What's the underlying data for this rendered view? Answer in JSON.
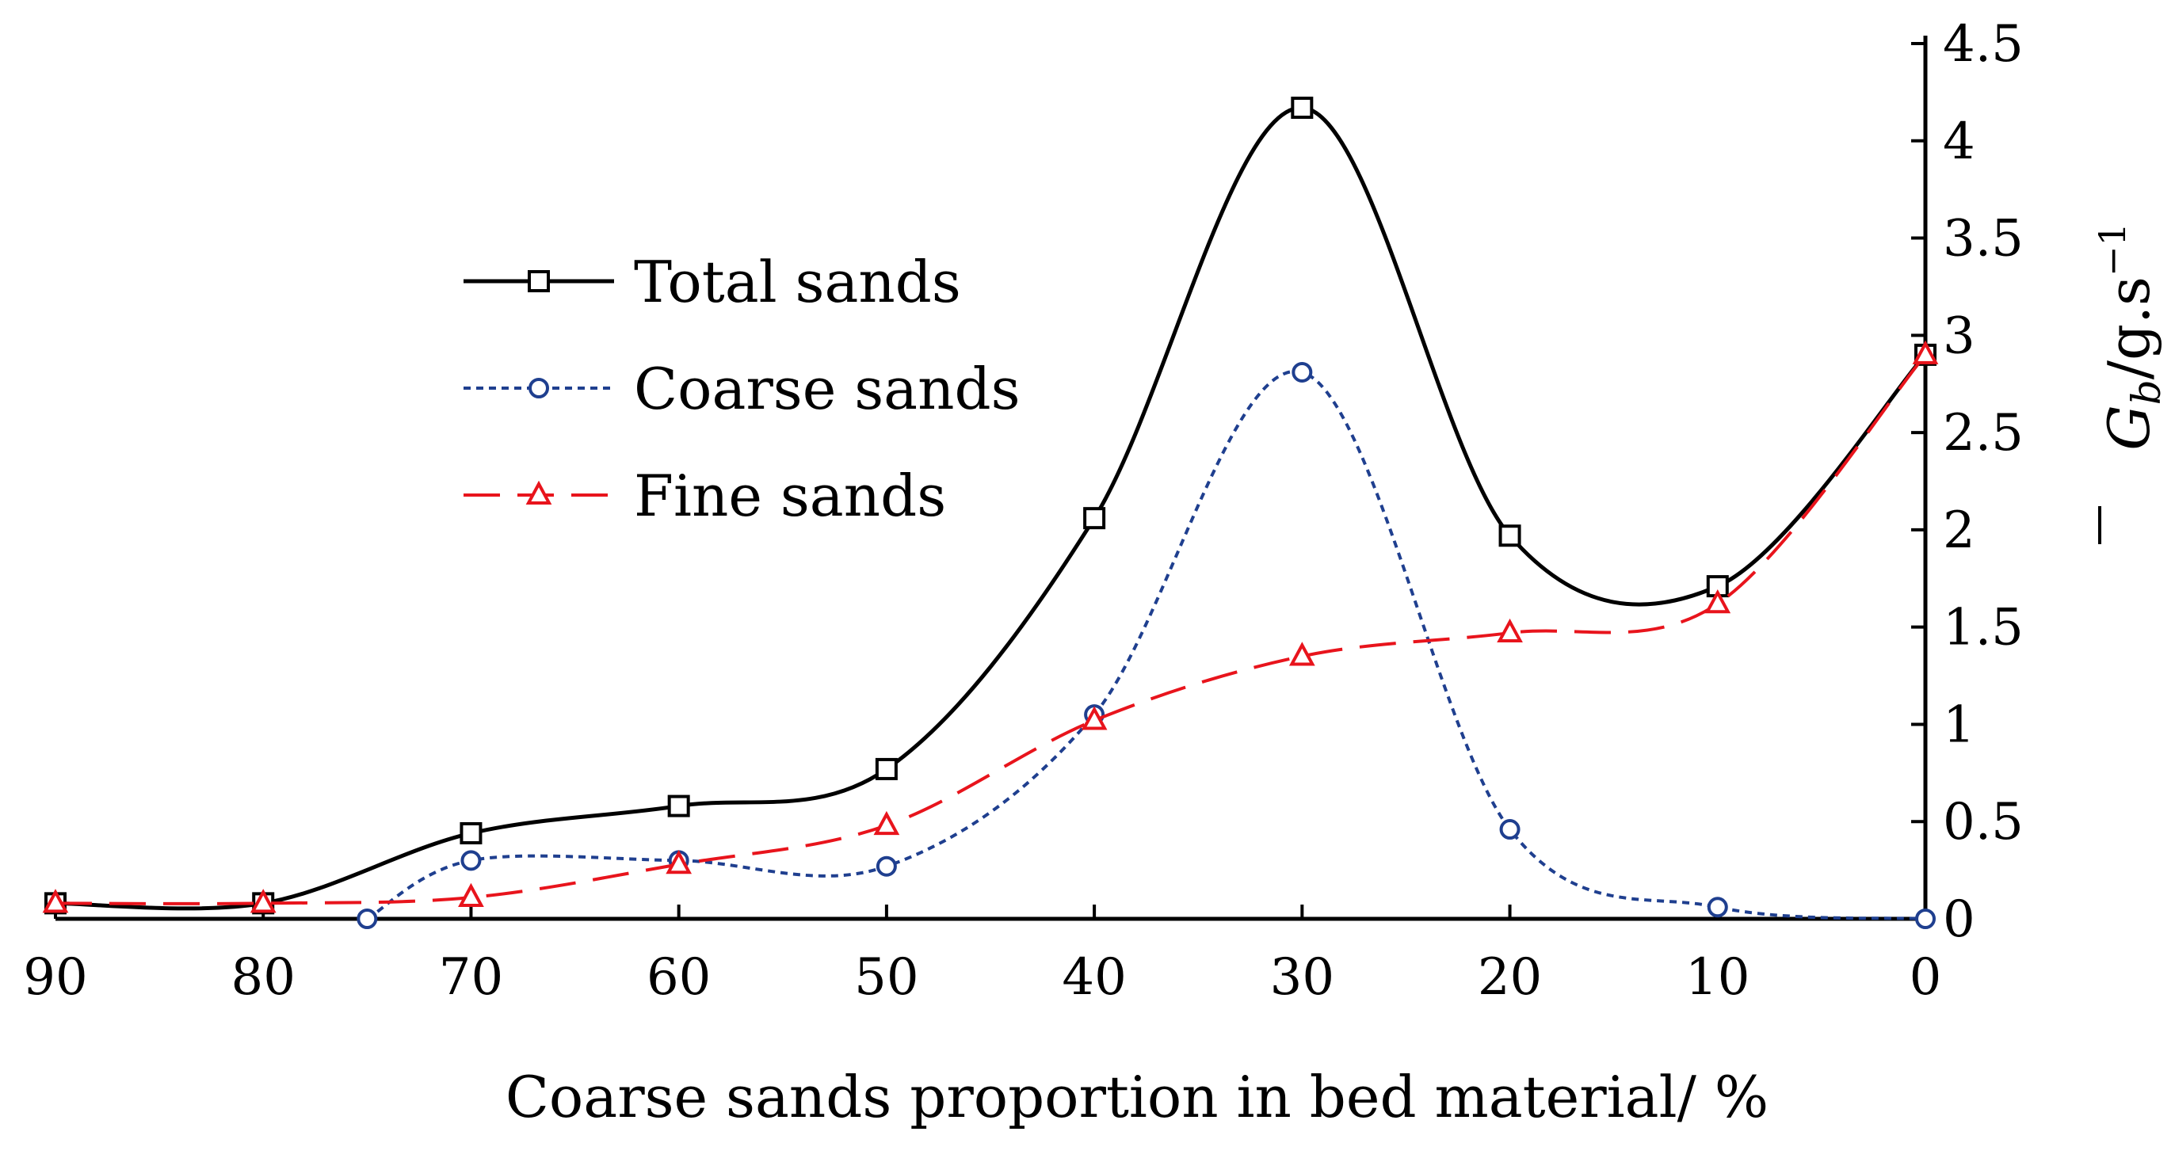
{
  "chart_data": {
    "type": "line",
    "xlabel": "Coarse sands proportion in bed material/ %",
    "ylabel": {
      "main": "G",
      "subscript": "b",
      "unit": "/g.s",
      "superscript": "−1"
    },
    "x_reversed": true,
    "xlim": [
      90,
      0
    ],
    "ylim": [
      0,
      4.5
    ],
    "xticks": [
      "90",
      "80",
      "70",
      "60",
      "50",
      "40",
      "30",
      "20",
      "10",
      "0"
    ],
    "yticks": [
      "0",
      "0.5",
      "1",
      "1.5",
      "2",
      "2.5",
      "3",
      "3.5",
      "4",
      "4.5"
    ],
    "legend_position": "upper-left",
    "grid": false,
    "series": [
      {
        "name": "Total sands",
        "color": "#000000",
        "line_style": "solid",
        "marker": "square",
        "x": [
          90,
          80,
          70,
          60,
          50,
          40,
          30,
          20,
          10,
          0
        ],
        "y": [
          0.08,
          0.08,
          0.44,
          0.58,
          0.77,
          2.06,
          4.17,
          1.97,
          1.71,
          2.9
        ]
      },
      {
        "name": "Coarse sands",
        "color": "#1f3f8f",
        "line_style": "dotted",
        "marker": "circle",
        "x": [
          75,
          70,
          60,
          50,
          40,
          30,
          20,
          10,
          0
        ],
        "y": [
          0.0,
          0.3,
          0.3,
          0.27,
          1.05,
          2.81,
          0.46,
          0.06,
          0.0
        ]
      },
      {
        "name": "Fine sands",
        "color": "#e8141c",
        "line_style": "dashed",
        "marker": "triangle",
        "x": [
          90,
          80,
          70,
          60,
          50,
          40,
          30,
          20,
          10,
          0
        ],
        "y": [
          0.08,
          0.08,
          0.11,
          0.28,
          0.48,
          1.02,
          1.35,
          1.47,
          1.62,
          2.9
        ]
      }
    ]
  }
}
